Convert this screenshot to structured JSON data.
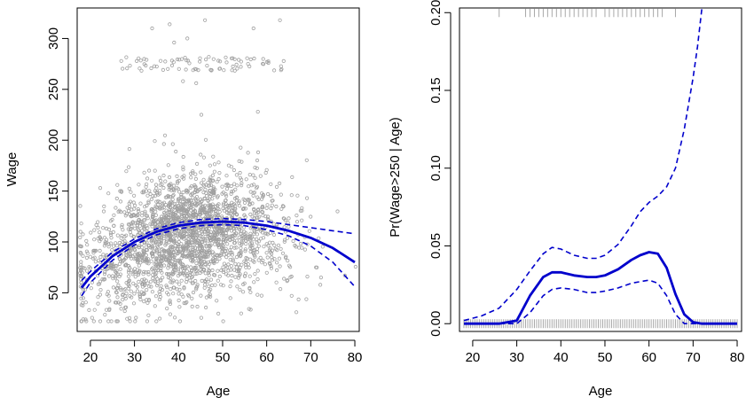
{
  "colors": {
    "points": "#a0a0a0",
    "fit": "#0000cc",
    "rug": "#a8a8a8"
  },
  "chart_data": [
    {
      "type": "scatter",
      "title": "",
      "xlabel": "Age",
      "ylabel": "Wage",
      "xlim": [
        17,
        81
      ],
      "ylim": [
        12,
        330
      ],
      "xticks": [
        "20",
        "30",
        "40",
        "50",
        "60",
        "70",
        "80"
      ],
      "yticks": [
        "50",
        "100",
        "150",
        "200",
        "250",
        "300"
      ],
      "grid": false,
      "legend": "none",
      "series": [
        {
          "kind": "fit",
          "x": [
            18,
            20,
            25,
            30,
            35,
            40,
            45,
            50,
            55,
            60,
            65,
            70,
            75,
            80
          ],
          "y": [
            55,
            66,
            86,
            100,
            110,
            116,
            119,
            120,
            119,
            116,
            111,
            104,
            94,
            80
          ]
        },
        {
          "kind": "upper-band",
          "x": [
            18,
            20,
            25,
            30,
            35,
            40,
            45,
            50,
            55,
            60,
            65,
            70,
            75,
            80
          ],
          "y": [
            62,
            71,
            90,
            103,
            113,
            119,
            122,
            123,
            122,
            120,
            117,
            114,
            111,
            108
          ]
        },
        {
          "kind": "lower-band",
          "x": [
            18,
            20,
            25,
            30,
            35,
            40,
            45,
            50,
            55,
            60,
            65,
            70,
            75,
            80
          ],
          "y": [
            47,
            60,
            82,
            97,
            107,
            113,
            116,
            117,
            116,
            112,
            106,
            96,
            80,
            56
          ]
        }
      ]
    },
    {
      "type": "line",
      "title": "",
      "xlabel": "Age",
      "ylabel": "Pr(Wage>250 | Age)",
      "xlim": [
        17,
        81
      ],
      "ylim": [
        -0.005,
        0.203
      ],
      "xticks": [
        "20",
        "30",
        "40",
        "50",
        "60",
        "70",
        "80"
      ],
      "yticks": [
        "0.00",
        "0.05",
        "0.10",
        "0.15",
        "0.20"
      ],
      "grid": false,
      "legend": "none",
      "series": [
        {
          "kind": "fit",
          "x": [
            18,
            22,
            26,
            30,
            33,
            36,
            38,
            40,
            43,
            46,
            48,
            50,
            53,
            56,
            58,
            60,
            62,
            64,
            66,
            68,
            70,
            72,
            74,
            76,
            80
          ],
          "y": [
            0.0,
            0.0,
            0.0,
            0.002,
            0.018,
            0.03,
            0.033,
            0.033,
            0.031,
            0.03,
            0.03,
            0.031,
            0.035,
            0.041,
            0.044,
            0.046,
            0.045,
            0.036,
            0.019,
            0.006,
            0.001,
            0.0,
            0.0,
            0.0,
            0.0
          ]
        },
        {
          "kind": "upper-band",
          "x": [
            18,
            22,
            26,
            30,
            33,
            36,
            38,
            40,
            43,
            46,
            48,
            50,
            53,
            56,
            58,
            60,
            62,
            64,
            66,
            68,
            70,
            71,
            72
          ],
          "y": [
            0.002,
            0.005,
            0.01,
            0.022,
            0.034,
            0.045,
            0.049,
            0.048,
            0.044,
            0.042,
            0.042,
            0.044,
            0.051,
            0.063,
            0.072,
            0.078,
            0.082,
            0.088,
            0.1,
            0.125,
            0.158,
            0.178,
            0.205
          ]
        },
        {
          "kind": "lower-band",
          "x": [
            18,
            22,
            26,
            30,
            33,
            36,
            38,
            40,
            43,
            46,
            48,
            50,
            53,
            56,
            58,
            60,
            62,
            64,
            66,
            68,
            70,
            72,
            74,
            76,
            80
          ],
          "y": [
            0.0,
            0.0,
            0.0,
            0.0,
            0.007,
            0.018,
            0.022,
            0.023,
            0.022,
            0.02,
            0.02,
            0.021,
            0.023,
            0.026,
            0.027,
            0.028,
            0.026,
            0.018,
            0.006,
            0.0,
            0.0,
            0.0,
            0.0,
            0.0,
            0.0
          ]
        }
      ]
    }
  ]
}
